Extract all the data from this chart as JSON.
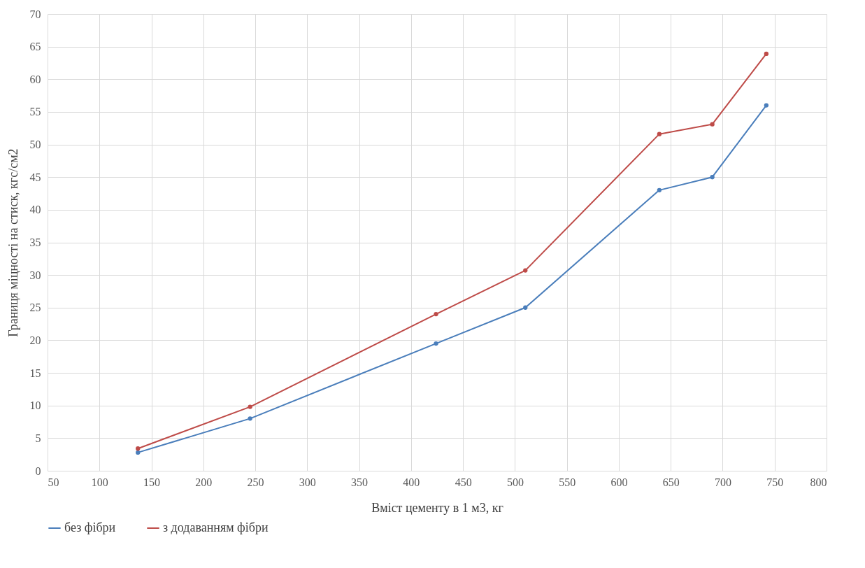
{
  "chart_data": {
    "type": "line",
    "xlabel": "Вміст цементу в 1 м3, кг",
    "ylabel": "Границя міцності на стиск, кгс/см2",
    "xlim": [
      50,
      800
    ],
    "xticks": [
      50,
      100,
      150,
      200,
      250,
      300,
      350,
      400,
      450,
      500,
      550,
      600,
      650,
      700,
      750,
      800
    ],
    "ylim": [
      0,
      70
    ],
    "yticks": [
      0,
      5,
      10,
      15,
      20,
      25,
      30,
      35,
      40,
      45,
      50,
      55,
      60,
      65,
      70
    ],
    "grid": true,
    "legend": "bottom",
    "marker": "circle",
    "line_style": "solid",
    "series": [
      {
        "name": "без фібри",
        "color": "#4a7ebb",
        "x": [
          137,
          245,
          424,
          510,
          639,
          690,
          742
        ],
        "values": [
          2.8,
          8,
          19.5,
          25,
          43,
          45,
          56
        ]
      },
      {
        "name": "з додаванням фібри",
        "color": "#be4b48",
        "x": [
          137,
          245,
          424,
          510,
          639,
          690,
          742
        ],
        "values": [
          3.4,
          9.8,
          24,
          30.7,
          51.6,
          53.1,
          63.9
        ]
      }
    ]
  }
}
